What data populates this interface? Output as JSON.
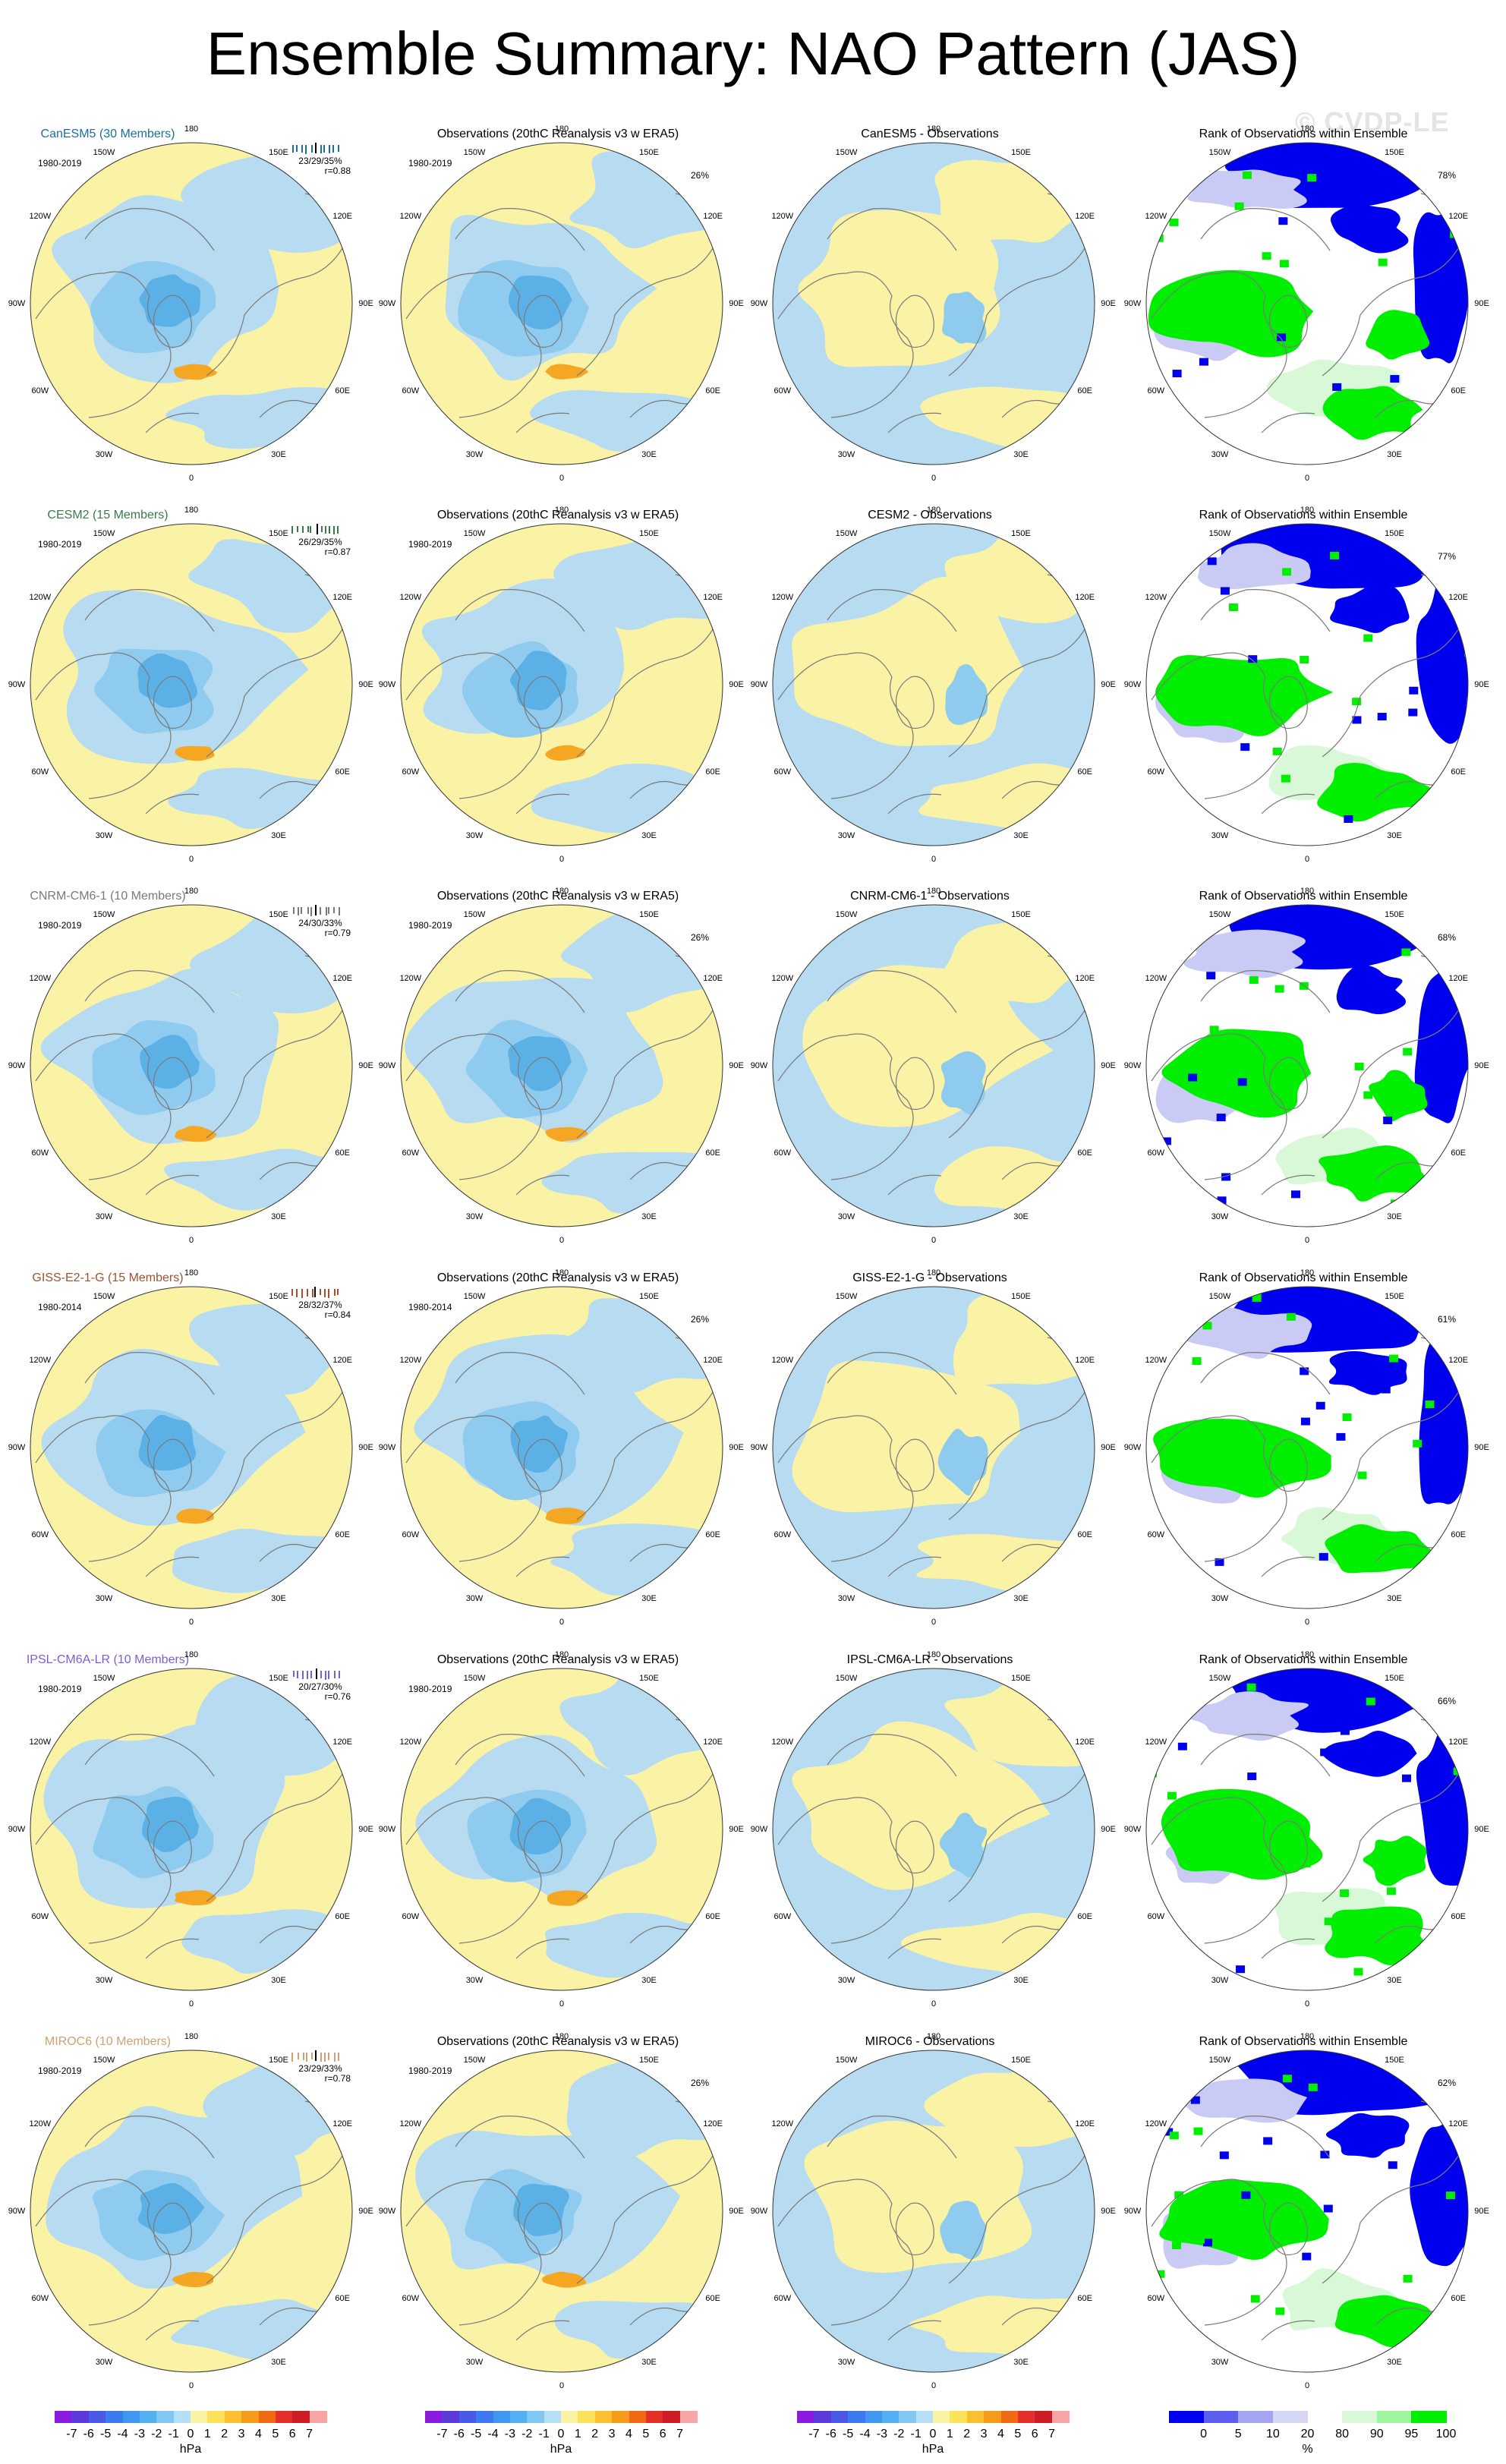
{
  "title": "Ensemble Summary: NAO Pattern (JAS)",
  "watermark": "© CVDP-LE",
  "colors": {
    "ocean_positive": "#faf3a6",
    "negative_light": "#b7dcf1",
    "negative_mid": "#8fcbef",
    "negative_dark": "#5bb1e6",
    "positive_orange": "#f5a623",
    "coast": "#7a7a7a",
    "rank_blue": "#0000ee",
    "rank_lightblue": "#c9cbf4",
    "rank_lightgreen": "#d8f8d8",
    "rank_green": "#00ee00"
  },
  "lon_labels": [
    "180",
    "150E",
    "120E",
    "90E",
    "60E",
    "30E",
    "0",
    "30W",
    "60W",
    "90W",
    "120W",
    "150W"
  ],
  "rows": [
    {
      "model": "CanESM5 (30 Members)",
      "model_color": "#1a6fa0",
      "period": "1980-2019",
      "stats_line1": "23/29/35%",
      "stats_line2": "r=0.88",
      "obs_title": "Observations (20thC Reanalysis v3 w ERA5)",
      "obs_period": "1980-2019",
      "obs_pct": "26%",
      "diff_title": "CanESM5 - Observations",
      "rank_title": "Rank of Observations within Ensemble",
      "rank_pct": "78%"
    },
    {
      "model": "CESM2 (15 Members)",
      "model_color": "#3a7a4a",
      "period": "1980-2019",
      "stats_line1": "26/29/35%",
      "stats_line2": "r=0.87",
      "obs_title": "Observations (20thC Reanalysis v3 w ERA5)",
      "obs_period": "1980-2019",
      "obs_pct": "",
      "diff_title": "CESM2 - Observations",
      "rank_title": "Rank of Observations within Ensemble",
      "rank_pct": "77%"
    },
    {
      "model": "CNRM-CM6-1 (10 Members)",
      "model_color": "#7a7a7a",
      "period": "1980-2019",
      "stats_line1": "24/30/33%",
      "stats_line2": "r=0.79",
      "obs_title": "Observations (20thC Reanalysis v3 w ERA5)",
      "obs_period": "1980-2019",
      "obs_pct": "26%",
      "diff_title": "CNRM-CM6-1 - Observations",
      "rank_title": "Rank of Observations within Ensemble",
      "rank_pct": "68%"
    },
    {
      "model": "GISS-E2-1-G (15 Members)",
      "model_color": "#a0522d",
      "period": "1980-2014",
      "stats_line1": "28/32/37%",
      "stats_line2": "r=0.84",
      "obs_title": "Observations (20thC Reanalysis v3 w ERA5)",
      "obs_period": "1980-2014",
      "obs_pct": "26%",
      "diff_title": "GISS-E2-1-G - Observations",
      "rank_title": "Rank of Observations within Ensemble",
      "rank_pct": "61%"
    },
    {
      "model": "IPSL-CM6A-LR (10 Members)",
      "model_color": "#7b5fd0",
      "period": "1980-2019",
      "stats_line1": "20/27/30%",
      "stats_line2": "r=0.76",
      "obs_title": "Observations (20thC Reanalysis v3 w ERA5)",
      "obs_period": "1980-2019",
      "obs_pct": "",
      "diff_title": "IPSL-CM6A-LR - Observations",
      "rank_title": "Rank of Observations within Ensemble",
      "rank_pct": "66%"
    },
    {
      "model": "MIROC6 (10 Members)",
      "model_color": "#d0a070",
      "period": "1980-2019",
      "stats_line1": "23/29/33%",
      "stats_line2": "r=0.78",
      "obs_title": "Observations (20thC Reanalysis v3 w ERA5)",
      "obs_period": "1980-2019",
      "obs_pct": "26%",
      "diff_title": "MIROC6 - Observations",
      "rank_title": "Rank of Observations within Ensemble",
      "rank_pct": "62%"
    }
  ],
  "colorbar_hpa": {
    "ticks": [
      "-7",
      "-6",
      "-5",
      "-4",
      "-3",
      "-2",
      "-1",
      "0",
      "1",
      "2",
      "3",
      "4",
      "5",
      "6",
      "7"
    ],
    "unit": "hPa",
    "colors": [
      "#8a1be0",
      "#5a3bd8",
      "#4a5ae6",
      "#3e79ef",
      "#3f97f0",
      "#52b1f2",
      "#83c8f2",
      "#b4dff4",
      "#faf3a6",
      "#fde35a",
      "#fbc02d",
      "#f79a1c",
      "#f06a14",
      "#e4302a",
      "#cc1c26",
      "#f7a5a5"
    ]
  },
  "colorbar_rank": {
    "ticks": [
      "0",
      "5",
      "10",
      "20",
      "80",
      "90",
      "95",
      "100"
    ],
    "unit": "%",
    "colors": [
      "#0000ee",
      "#5d5dee",
      "#a3a5f0",
      "#d6d7f6",
      "#ffffff",
      "#d9f9d9",
      "#9df59d",
      "#00ee00"
    ]
  }
}
